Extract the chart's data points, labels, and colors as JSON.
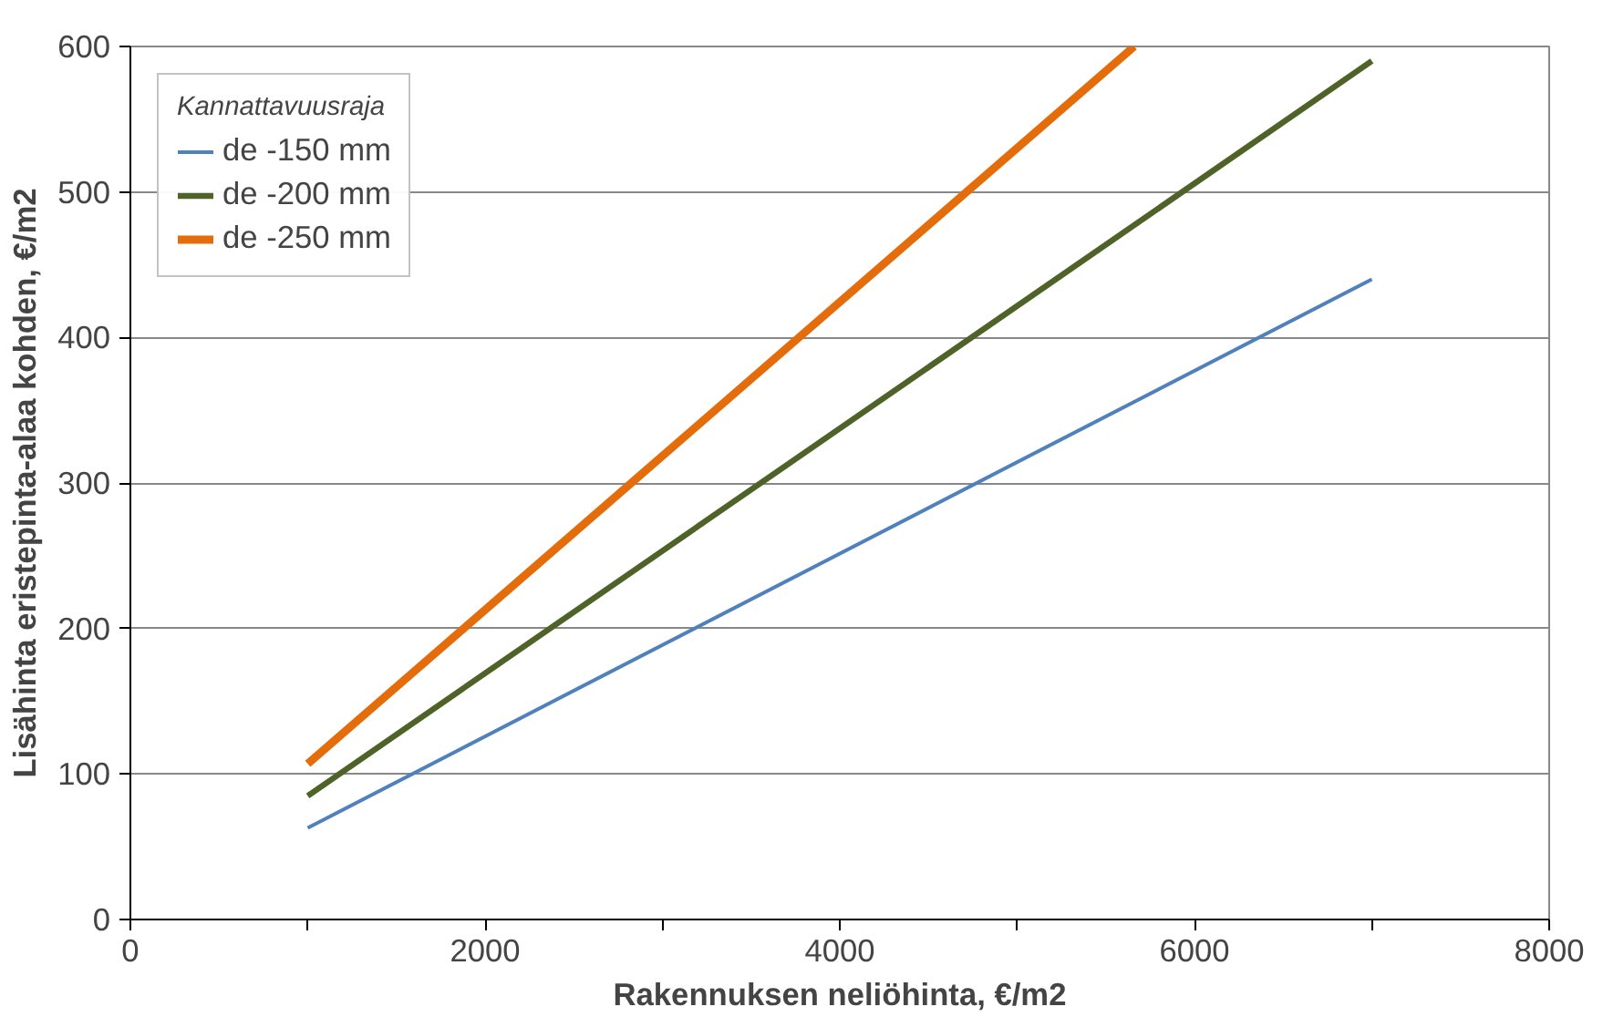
{
  "chart_data": {
    "type": "line",
    "xlabel": "Rakennuksen neliöhinta, €/m2",
    "ylabel": "Lisähinta eristepinta-alaa kohden, €/m2",
    "legend_title": "Kannattavuusraja",
    "legend": "top left",
    "grid": "y",
    "marker": "none",
    "xlim": [
      0,
      8000
    ],
    "ylim": [
      0,
      600
    ],
    "xticks": [
      0,
      {
        "value": 1000,
        "label": null
      },
      2000,
      {
        "value": 3000,
        "label": null
      },
      4000,
      {
        "value": 5000,
        "label": null
      },
      6000,
      {
        "value": 7000,
        "label": null
      },
      8000
    ],
    "yticks": [
      0,
      100,
      200,
      300,
      400,
      500,
      600
    ],
    "series": [
      {
        "name": "de -150 mm",
        "color": "#4f81bd",
        "x": [
          1000,
          7000
        ],
        "values": [
          63,
          440
        ]
      },
      {
        "name": "de -200 mm",
        "color": "#4f6228",
        "x": [
          1000,
          7000
        ],
        "values": [
          85,
          590
        ]
      },
      {
        "name": "de -250 mm",
        "color": "#e46c0a",
        "x": [
          1000,
          5660
        ],
        "values": [
          107,
          600
        ]
      }
    ]
  }
}
